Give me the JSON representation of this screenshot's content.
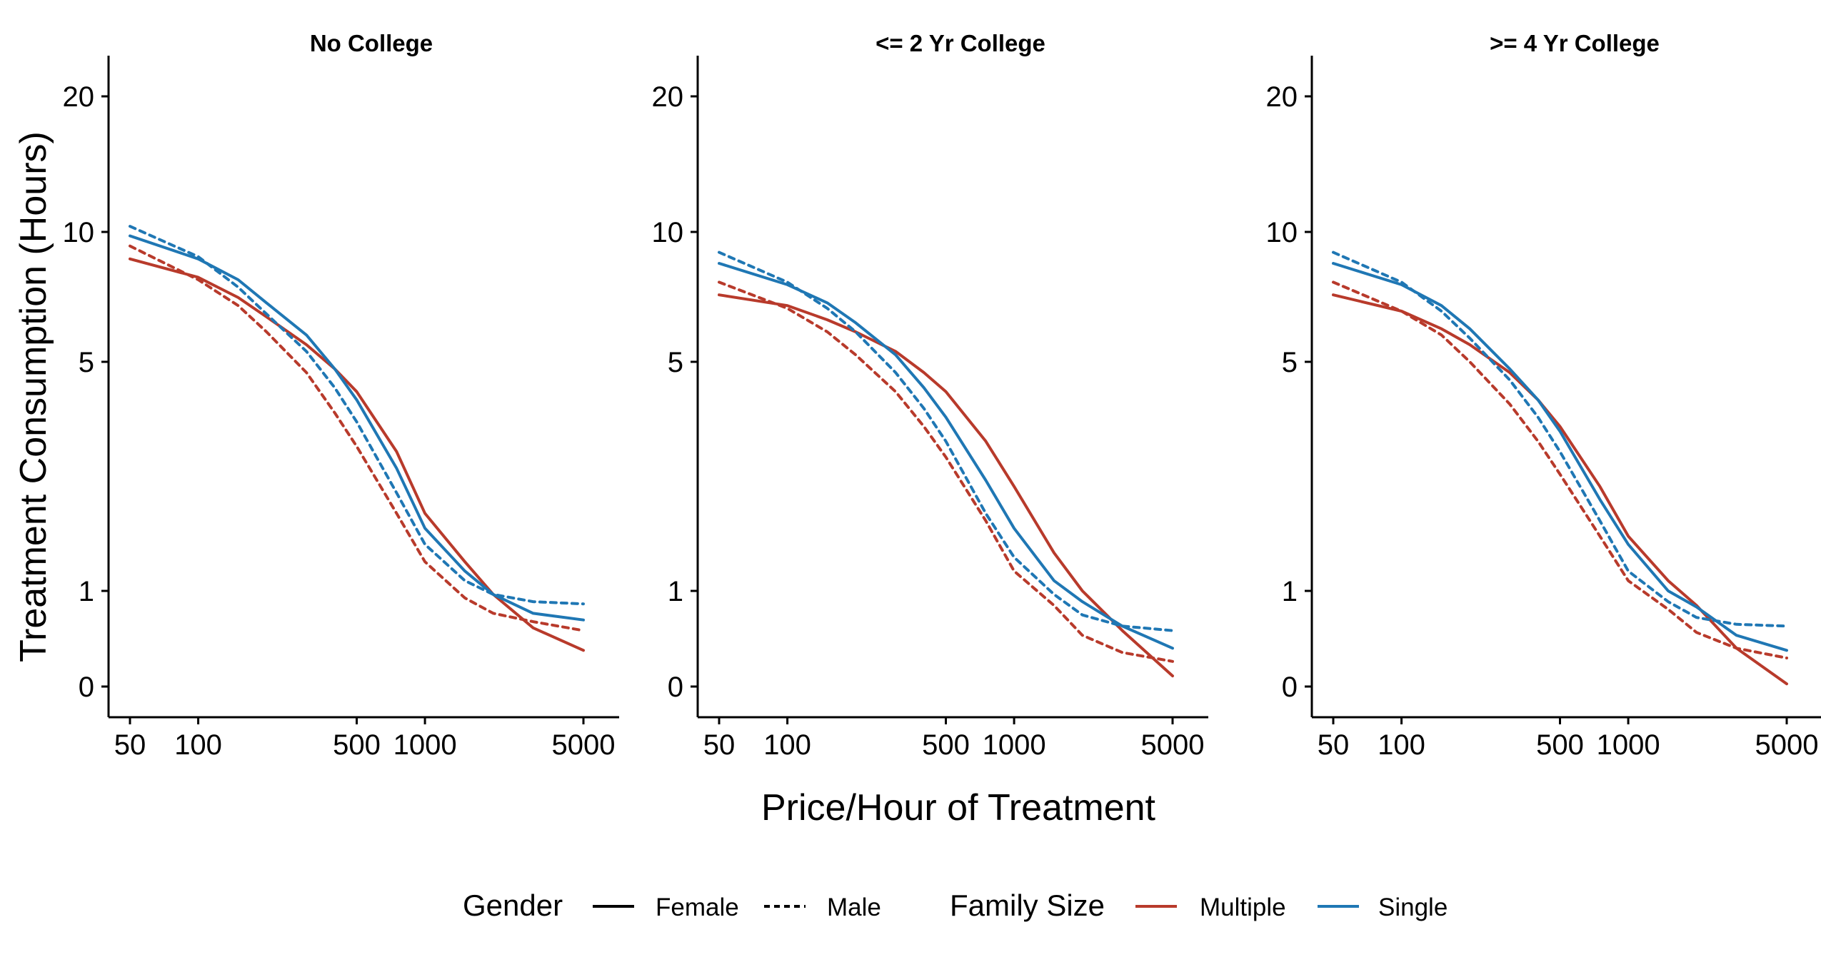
{
  "chart_data": {
    "type": "line",
    "layout": "three facet panels side by side, shared axes",
    "x_scale": "log",
    "y_scale": "transformed (log-like, with 0 shown)",
    "xlabel": "Price/Hour of Treatment",
    "ylabel": "Treatment Consumption (Hours)",
    "x_ticks": [
      50,
      100,
      500,
      1000,
      5000
    ],
    "y_ticks": [
      0,
      1,
      5,
      10,
      20
    ],
    "grid": false,
    "legend_position": "bottom",
    "legend": {
      "linetype": {
        "title": "Gender",
        "entries": [
          "Female",
          "Male"
        ]
      },
      "color": {
        "title": "Family Size",
        "entries": [
          "Multiple",
          "Single"
        ]
      }
    },
    "colors": {
      "Multiple": "#b83a2b",
      "Single": "#1f77b4"
    },
    "x": [
      50,
      100,
      150,
      200,
      300,
      400,
      500,
      750,
      1000,
      1500,
      2000,
      3000,
      5000
    ],
    "panels": [
      {
        "title": "No College",
        "series": [
          {
            "gender": "Female",
            "family_size": "Multiple",
            "values": [
              8.7,
              7.9,
              7.1,
              6.4,
              5.5,
              4.8,
              4.2,
              2.9,
              1.9,
              1.3,
              0.95,
              0.53,
              0.3
            ]
          },
          {
            "gender": "Male",
            "family_size": "Multiple",
            "values": [
              9.3,
              7.8,
              6.8,
              5.9,
              4.7,
              3.7,
              3.0,
              1.9,
              1.3,
              0.9,
              0.7,
              0.6,
              0.5
            ]
          },
          {
            "gender": "Female",
            "family_size": "Single",
            "values": [
              9.8,
              8.7,
              7.8,
              6.9,
              5.8,
              4.8,
              4.0,
              2.6,
              1.7,
              1.2,
              0.95,
              0.7,
              0.62
            ]
          },
          {
            "gender": "Male",
            "family_size": "Single",
            "values": [
              10.3,
              8.8,
              7.5,
              6.5,
              5.3,
              4.3,
              3.5,
              2.2,
              1.5,
              1.1,
              0.95,
              0.85,
              0.82
            ]
          }
        ]
      },
      {
        "title": "<= 2 Yr College",
        "series": [
          {
            "gender": "Female",
            "family_size": "Multiple",
            "values": [
              7.2,
              6.8,
              6.3,
              5.9,
              5.3,
              4.7,
              4.2,
              3.1,
              2.3,
              1.4,
              1.0,
              0.5,
              0.08
            ]
          },
          {
            "gender": "Male",
            "family_size": "Multiple",
            "values": [
              7.7,
              6.7,
              5.9,
              5.2,
              4.2,
              3.4,
              2.8,
              1.8,
              1.2,
              0.8,
              0.45,
              0.28,
              0.2
            ]
          },
          {
            "gender": "Female",
            "family_size": "Single",
            "values": [
              8.5,
              7.6,
              6.9,
              6.2,
              5.2,
              4.3,
              3.6,
              2.4,
              1.7,
              1.1,
              0.85,
              0.55,
              0.32
            ]
          },
          {
            "gender": "Male",
            "family_size": "Single",
            "values": [
              9.0,
              7.7,
              6.7,
              5.9,
              4.7,
              3.8,
              3.1,
              1.9,
              1.35,
              0.95,
              0.68,
              0.55,
              0.5
            ]
          }
        ]
      },
      {
        "title": ">= 4 Yr College",
        "series": [
          {
            "gender": "Female",
            "family_size": "Multiple",
            "values": [
              7.2,
              6.6,
              6.0,
              5.5,
              4.7,
              4.0,
              3.4,
              2.3,
              1.6,
              1.1,
              0.8,
              0.32,
              0.02
            ]
          },
          {
            "gender": "Male",
            "family_size": "Multiple",
            "values": [
              7.7,
              6.6,
              5.8,
              5.0,
              3.9,
              3.1,
              2.5,
              1.6,
              1.1,
              0.75,
              0.48,
              0.32,
              0.23
            ]
          },
          {
            "gender": "Female",
            "family_size": "Single",
            "values": [
              8.5,
              7.6,
              6.8,
              6.0,
              4.8,
              4.0,
              3.3,
              2.1,
              1.5,
              1.0,
              0.78,
              0.45,
              0.3
            ]
          },
          {
            "gender": "Male",
            "family_size": "Single",
            "values": [
              9.0,
              7.7,
              6.6,
              5.7,
              4.5,
              3.6,
              2.9,
              1.8,
              1.2,
              0.85,
              0.65,
              0.57,
              0.55
            ]
          }
        ]
      }
    ]
  }
}
